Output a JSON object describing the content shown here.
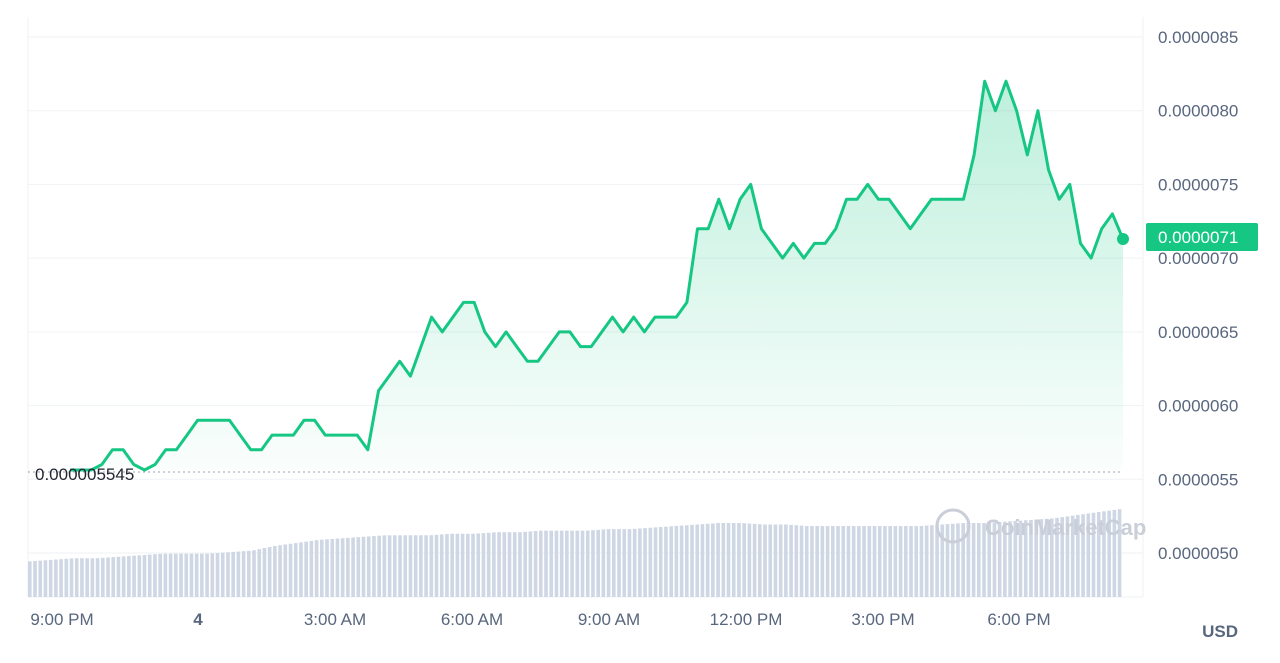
{
  "chart_data": {
    "type": "area",
    "currency": "USD",
    "x_ticks": [
      "9:00 PM",
      "4",
      "3:00 AM",
      "6:00 AM",
      "9:00 AM",
      "12:00 PM",
      "3:00 PM",
      "6:00 PM"
    ],
    "y_ticks": [
      "0.0000085",
      "0.0000080",
      "0.0000075",
      "0.0000070",
      "0.0000065",
      "0.0000060",
      "0.0000055",
      "0.0000050"
    ],
    "ylim": [
      4.6e-06,
      8.6e-06
    ],
    "open_price_label": "0.000005545",
    "open_price": 5.545e-06,
    "current_price_label": "0.0000071",
    "current_price": 7.13e-06,
    "watermark": "CoinMarketCap",
    "colors": {
      "line": "#16c784",
      "fill": "#16c784",
      "volume": "#cfd6e4",
      "badge": "#16c784"
    },
    "price_series": [
      5.2e-06,
      5.4e-06,
      5.5e-06,
      5.6e-06,
      5.7e-06,
      5.7e-06,
      5.6e-06,
      5.5e-06,
      5.6e-06,
      5.7e-06,
      5.7e-06,
      5.8e-06,
      5.9e-06,
      5.9e-06,
      5.9e-06,
      5.9e-06,
      5.8e-06,
      5.7e-06,
      5.7e-06,
      5.8e-06,
      5.8e-06,
      5.8e-06,
      5.9e-06,
      5.9e-06,
      5.8e-06,
      5.8e-06,
      5.8e-06,
      5.8e-06,
      5.7e-06,
      6.1e-06,
      6.2e-06,
      6.3e-06,
      6.2e-06,
      6.4e-06,
      6.6e-06,
      6.5e-06,
      6.6e-06,
      6.7e-06,
      6.7e-06,
      6.5e-06,
      6.4e-06,
      6.5e-06,
      6.4e-06,
      6.3e-06,
      6.3e-06,
      6.4e-06,
      6.5e-06,
      6.5e-06,
      6.4e-06,
      6.4e-06,
      6.5e-06,
      6.6e-06,
      6.5e-06,
      6.6e-06,
      6.5e-06,
      6.6e-06,
      6.6e-06,
      6.6e-06,
      6.7e-06,
      7.2e-06,
      7.2e-06,
      7.4e-06,
      7.2e-06,
      7.4e-06,
      7.5e-06,
      7.2e-06,
      7.1e-06,
      7e-06,
      7.1e-06,
      7e-06,
      7.1e-06,
      7.1e-06,
      7.2e-06,
      7.4e-06,
      7.4e-06,
      7.5e-06,
      7.4e-06,
      7.4e-06,
      7.3e-06,
      7.2e-06,
      7.3e-06,
      7.4e-06,
      7.4e-06,
      7.4e-06,
      7.4e-06,
      7.7e-06,
      8.2e-06,
      8e-06,
      8.2e-06,
      8e-06,
      7.7e-06,
      8e-06,
      7.6e-06,
      7.4e-06,
      7.5e-06,
      7.1e-06,
      7e-06,
      7.2e-06,
      7.3e-06,
      7.13e-06
    ],
    "volume_series": [
      0.2,
      0.21,
      0.22,
      0.22,
      0.23,
      0.24,
      0.25,
      0.25,
      0.25,
      0.26,
      0.27,
      0.3,
      0.32,
      0.34,
      0.35,
      0.36,
      0.37,
      0.37,
      0.37,
      0.38,
      0.38,
      0.39,
      0.39,
      0.4,
      0.4,
      0.4,
      0.41,
      0.41,
      0.42,
      0.43,
      0.44,
      0.45,
      0.45,
      0.44,
      0.44,
      0.43,
      0.43,
      0.43,
      0.43,
      0.43,
      0.43,
      0.44,
      0.45,
      0.45,
      0.46,
      0.47,
      0.48,
      0.5,
      0.52,
      0.54
    ]
  }
}
